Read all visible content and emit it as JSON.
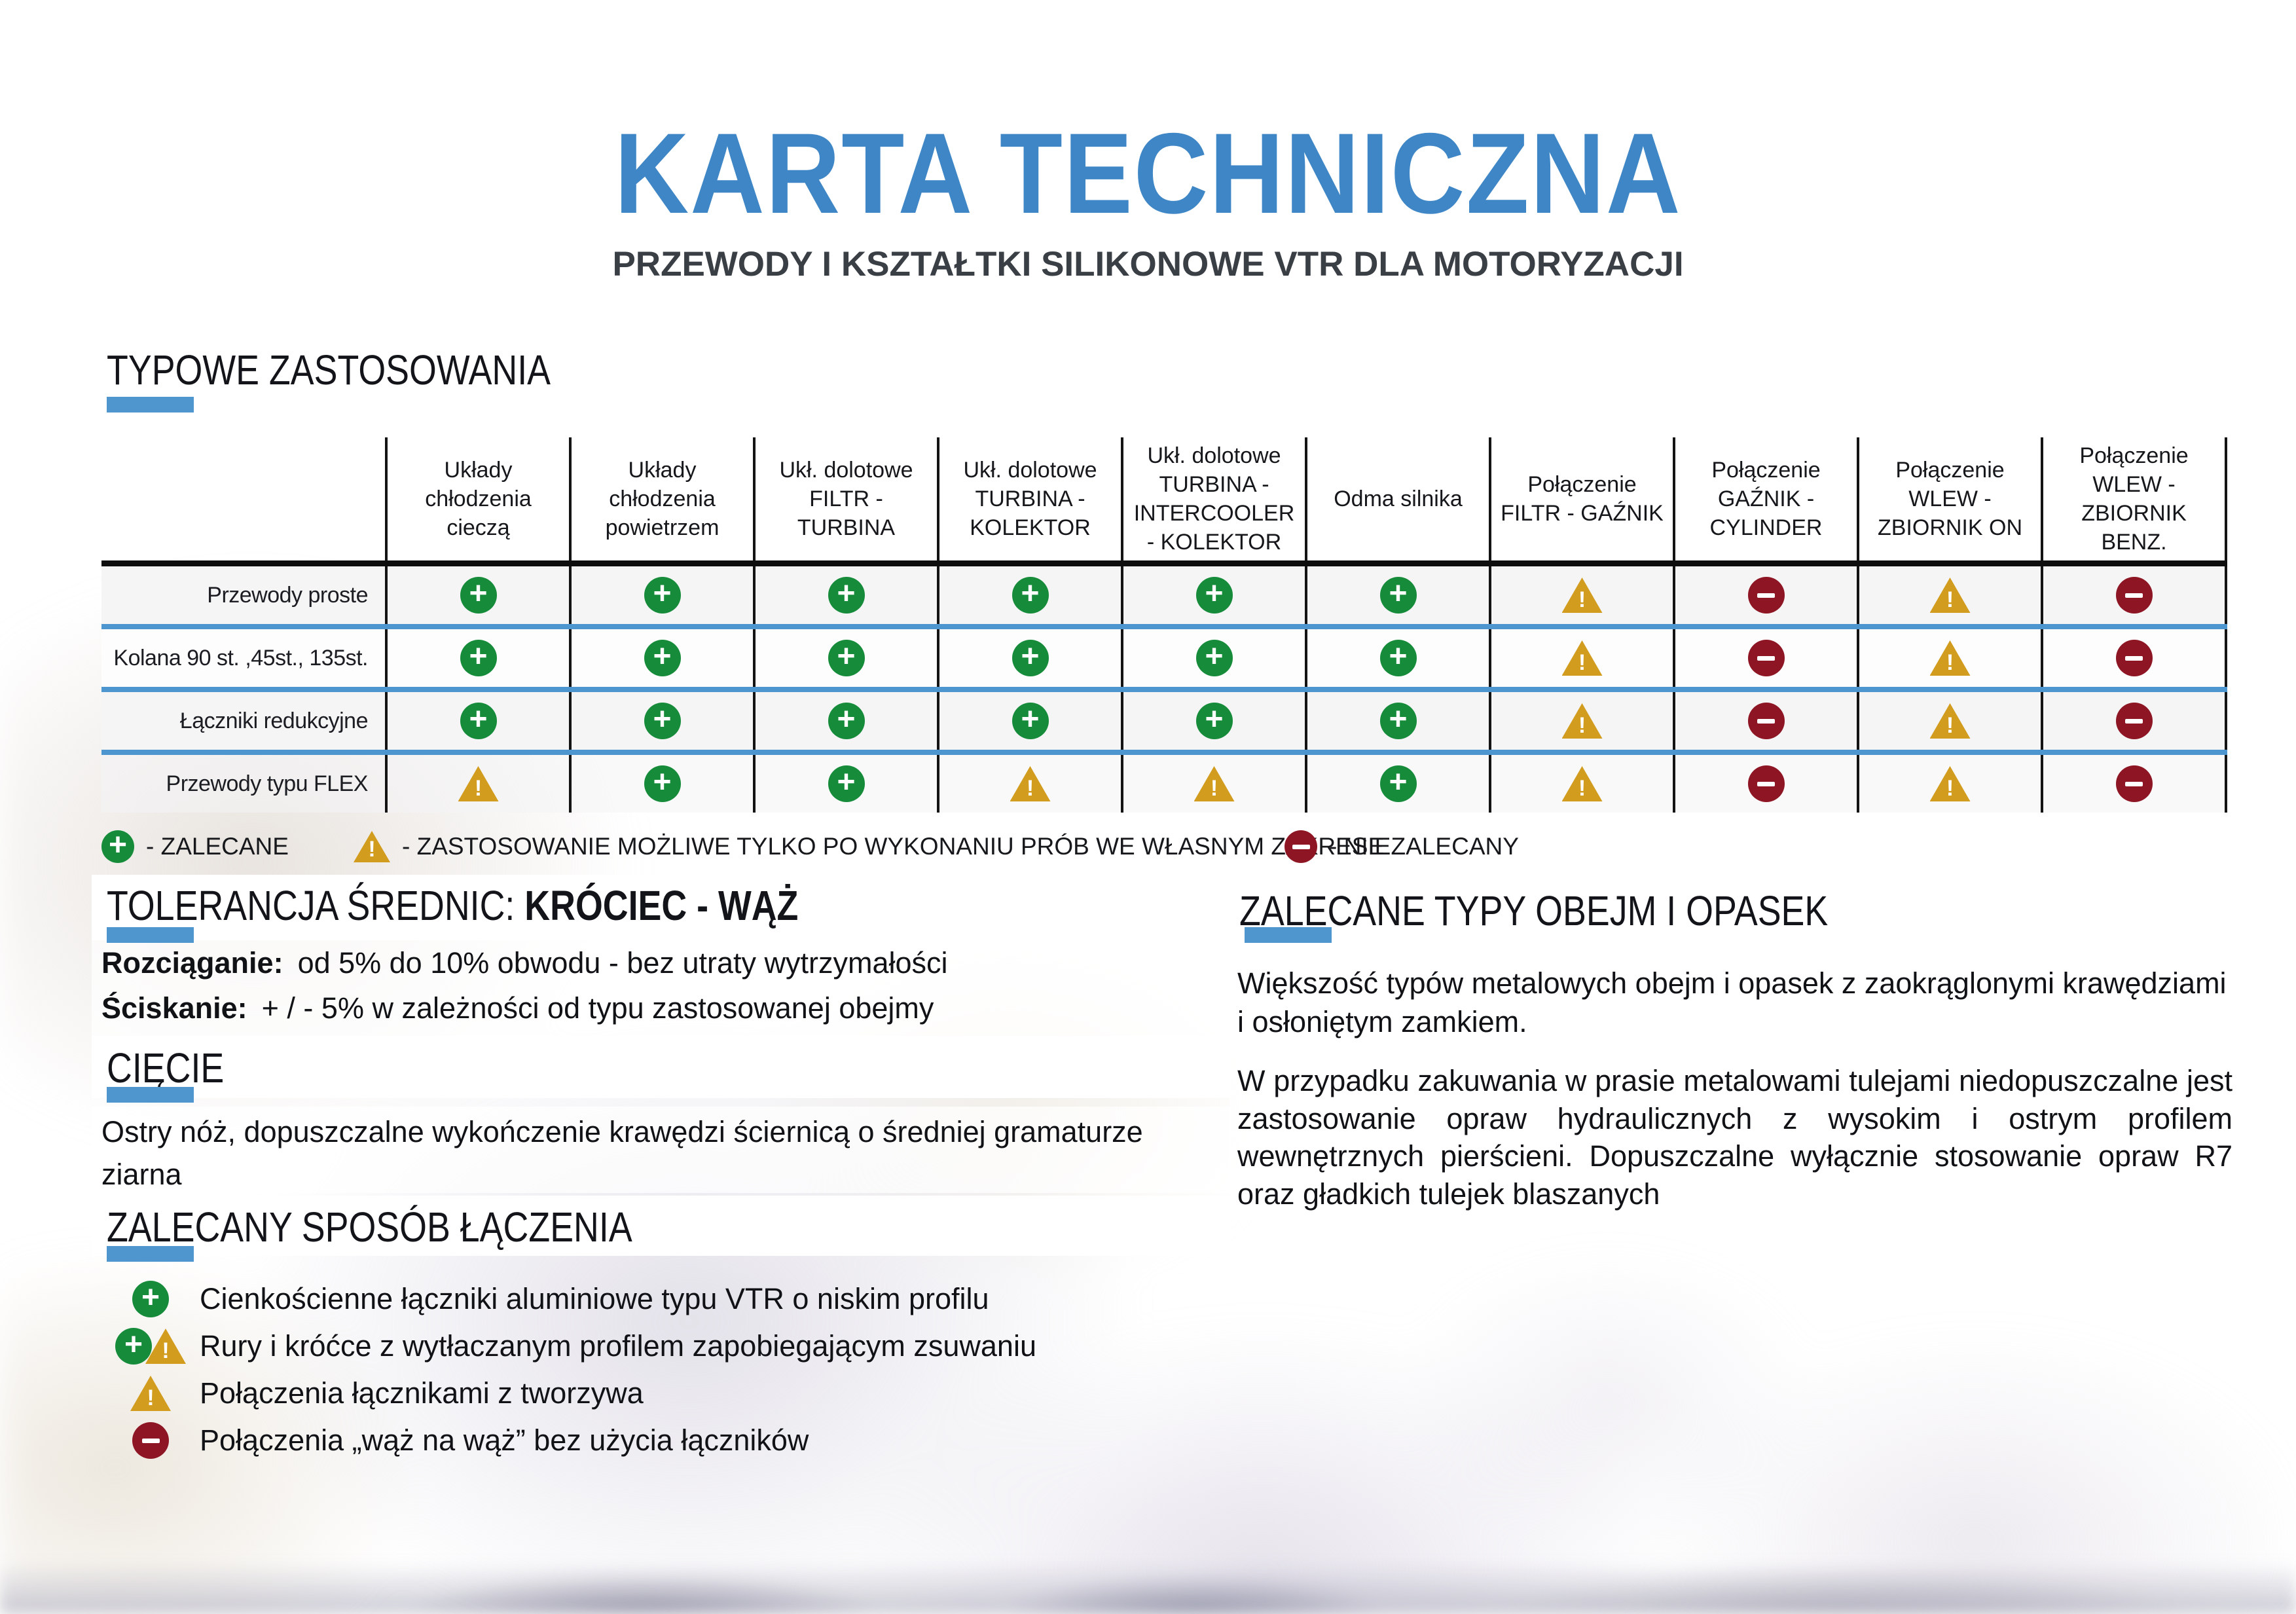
{
  "header": {
    "title": "KARTA TECHNICZNA",
    "subtitle": "PRZEWODY I KSZTAŁTKI SILIKONOWE VTR DLA MOTORYZACJI"
  },
  "sections": {
    "typical": {
      "heading": "TYPOWE ZASTOSOWANIA"
    }
  },
  "table": {
    "columns": [
      "Układy chłodzenia cieczą",
      "Układy chłodzenia powietrzem",
      "Ukł. dolotowe FILTR - TURBINA",
      "Ukł. dolotowe TURBINA - KOLEKTOR",
      "Ukł. dolotowe TURBINA - INTERCOOLER - KOLEKTOR",
      "Odma silnika",
      "Połączenie FILTR - GAŹNIK",
      "Połączenie GAŹNIK - CYLINDER",
      "Połączenie WLEW - ZBIORNIK ON",
      "Połączenie WLEW - ZBIORNIK BENZ."
    ],
    "rows": [
      {
        "label": "Przewody proste",
        "cells": [
          "plus",
          "plus",
          "plus",
          "plus",
          "plus",
          "plus",
          "warn",
          "minus",
          "warn",
          "minus"
        ]
      },
      {
        "label": "Kolana 90 st. ,45st., 135st.",
        "cells": [
          "plus",
          "plus",
          "plus",
          "plus",
          "plus",
          "plus",
          "warn",
          "minus",
          "warn",
          "minus"
        ]
      },
      {
        "label": "Łączniki redukcyjne",
        "cells": [
          "plus",
          "plus",
          "plus",
          "plus",
          "plus",
          "plus",
          "warn",
          "minus",
          "warn",
          "minus"
        ]
      },
      {
        "label": "Przewody typu FLEX",
        "cells": [
          "warn",
          "plus",
          "plus",
          "warn",
          "warn",
          "plus",
          "warn",
          "minus",
          "warn",
          "minus"
        ]
      }
    ]
  },
  "legend": [
    {
      "icon": "plus",
      "label": "- ZALECANE"
    },
    {
      "icon": "warn",
      "label": "- ZASTOSOWANIE MOŻLIWE TYLKO PO WYKONANIU PRÓB WE WŁASNYM ZAKRESIE"
    },
    {
      "icon": "minus",
      "label": "- NIE ZALECANY"
    }
  ],
  "tolerance": {
    "heading_normal": "TOLERANCJA ŚREDNIC:",
    "heading_bold": "KRÓCIEC - WĄŻ",
    "line1_label": "Rozciąganie:",
    "line1_text": "od 5% do 10% obwodu - bez utraty wytrzymałości",
    "line2_label": "Ściskanie:",
    "line2_text": "+ / -  5%  w zależności od typu zastosowanej obejmy"
  },
  "cutting": {
    "heading": "CIĘCIE",
    "text": "Ostry nóż, dopuszczalne wykończenie krawędzi ściernicą  o średniej gramaturze ziarna"
  },
  "joining": {
    "heading": "ZALECANY SPOSÓB ŁĄCZENIA",
    "items": [
      {
        "icons": [
          "plus"
        ],
        "text": "Cienkościenne łączniki aluminiowe typu VTR o niskim profilu"
      },
      {
        "icons": [
          "plus",
          "warn"
        ],
        "text": "Rury i króćce z wytłaczanym profilem zapobiegającym zsuwaniu"
      },
      {
        "icons": [
          "warn"
        ],
        "text": "Połączenia łącznikami z tworzywa"
      },
      {
        "icons": [
          "minus"
        ],
        "text": "Połączenia „wąż na wąż” bez użycia łączników"
      }
    ]
  },
  "clamps": {
    "heading": "ZALECANE TYPY OBEJM I OPASEK",
    "para1": "Większość typów metalowych obejm i opasek  z zaokrąglonymi krawędziami i osłoniętym zamkiem.",
    "para2": "W przypadku zakuwania w prasie metalowami tulejami niedopuszczalne jest zastosowanie opraw hydraulicznych z wysokim i ostrym profilem wewnętrznych pierścieni. Dopuszczalne wyłącznie stosowanie opraw R7 oraz gładkich tulejek blaszanych"
  },
  "colors": {
    "title_blue": "#3e86c5",
    "accent_blue": "#4f96cf",
    "row_separator_blue": "#4d95cf",
    "plus_green": "#168c3b",
    "warn_amber": "#d29c1e",
    "minus_red": "#8e1523",
    "text_dark": "#15171b"
  }
}
